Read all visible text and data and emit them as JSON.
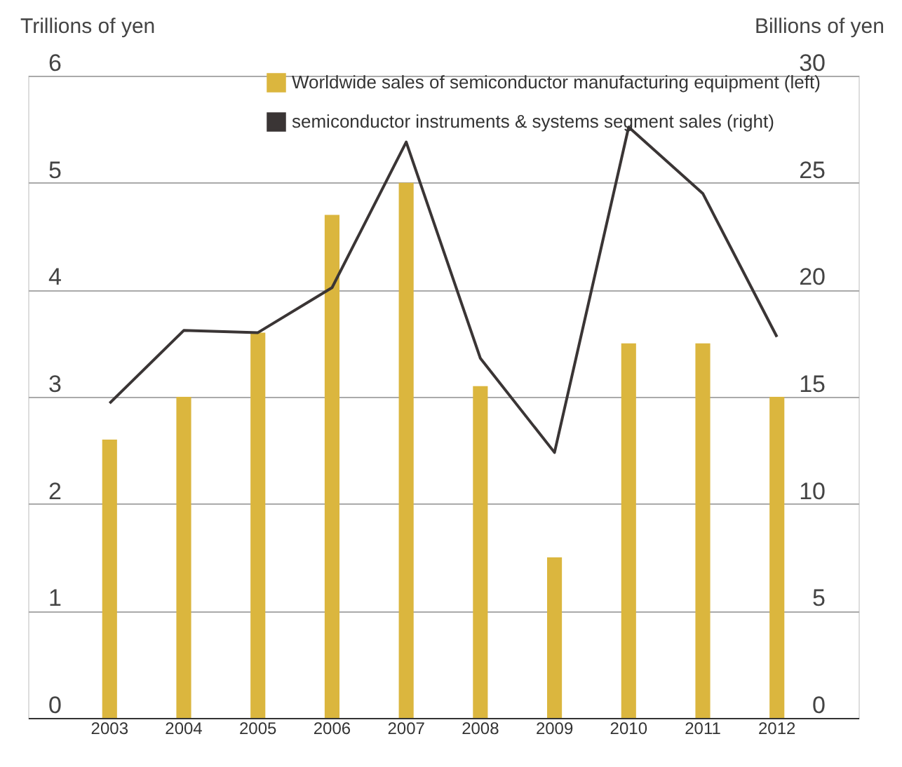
{
  "chart_data": {
    "type": "bar",
    "categories": [
      "2003",
      "2004",
      "2005",
      "2006",
      "2007",
      "2008",
      "2009",
      "2010",
      "2011",
      "2012"
    ],
    "ylabel": "Trillions of yen",
    "y2label": "Billions of yen",
    "ylim": [
      0,
      6
    ],
    "yticks": [
      0,
      1,
      2,
      3,
      4,
      5,
      6
    ],
    "y2lim": [
      0,
      30
    ],
    "y2ticks": [
      0,
      5,
      10,
      15,
      20,
      25,
      30
    ],
    "grid": "y",
    "legend": "top",
    "series": [
      {
        "name": "Worldwide sales of semiconductor manufacturing equipment (left)",
        "color": "#dbb63e",
        "values": [
          2.6,
          3.0,
          3.6,
          4.7,
          5.0,
          3.1,
          1.5,
          3.5,
          3.5,
          3.0
        ]
      },
      {
        "name": "semiconductor instruments & systems segment sales (right)",
        "type": "line",
        "axis": "y2",
        "color": "#3a3535",
        "values": [
          14.7,
          18.1,
          18.0,
          20.1,
          26.9,
          16.8,
          12.4,
          27.6,
          24.5,
          17.8
        ]
      }
    ]
  }
}
